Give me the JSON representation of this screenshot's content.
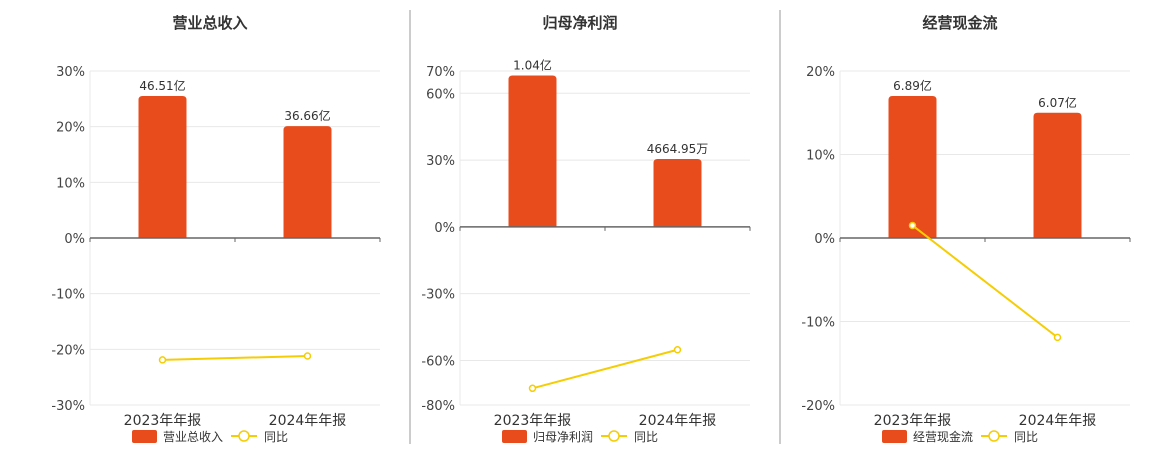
{
  "colors": {
    "bar": "#e84c1c",
    "line": "#f5cd05",
    "marker_fill": "#ffffff",
    "grid": "#e8e8e8",
    "axis": "#666666",
    "divider": "#999999",
    "text": "#333333",
    "tick_text": "#444444"
  },
  "legend": {
    "line_label": "同比"
  },
  "chart_data": [
    {
      "type": "bar",
      "title": "营业总收入",
      "categories": [
        "2023年年报",
        "2024年年报"
      ],
      "ylim": [
        -30,
        30
      ],
      "yticks": [
        30,
        20,
        10,
        0,
        -10,
        -20,
        -30
      ],
      "ytick_labels": [
        "30%",
        "20%",
        "10%",
        "0%",
        "-10%",
        "-20%",
        "-30%"
      ],
      "grid": true,
      "legend_position": "bottom",
      "series": [
        {
          "name": "营业总收入",
          "kind": "bar",
          "values": [
            25.5,
            20.1
          ],
          "labels": [
            "46.51亿",
            "36.66亿"
          ]
        },
        {
          "name": "同比",
          "kind": "line",
          "values": [
            -21.9,
            -21.2
          ]
        }
      ]
    },
    {
      "type": "bar",
      "title": "归母净利润",
      "categories": [
        "2023年年报",
        "2024年年报"
      ],
      "ylim": [
        -80,
        70
      ],
      "yticks": [
        70,
        60,
        30,
        0,
        -30,
        -60,
        -80
      ],
      "ytick_labels": [
        "70%",
        "60%",
        "30%",
        "0%",
        "-30%",
        "-60%",
        "-80%"
      ],
      "grid": true,
      "legend_position": "bottom",
      "series": [
        {
          "name": "归母净利润",
          "kind": "bar",
          "values": [
            68,
            30.5
          ],
          "labels": [
            "1.04亿",
            "4664.95万"
          ]
        },
        {
          "name": "同比",
          "kind": "line",
          "values": [
            -72.5,
            -55.2
          ]
        }
      ]
    },
    {
      "type": "bar",
      "title": "经营现金流",
      "categories": [
        "2023年年报",
        "2024年年报"
      ],
      "ylim": [
        -20,
        20
      ],
      "yticks": [
        20,
        10,
        0,
        -10,
        -20
      ],
      "ytick_labels": [
        "20%",
        "10%",
        "0%",
        "-10%",
        "-20%"
      ],
      "grid": true,
      "legend_position": "bottom",
      "series": [
        {
          "name": "经营现金流",
          "kind": "bar",
          "values": [
            17,
            15
          ],
          "labels": [
            "6.89亿",
            "6.07亿"
          ]
        },
        {
          "name": "同比",
          "kind": "line",
          "values": [
            1.5,
            -11.9
          ]
        }
      ]
    }
  ]
}
